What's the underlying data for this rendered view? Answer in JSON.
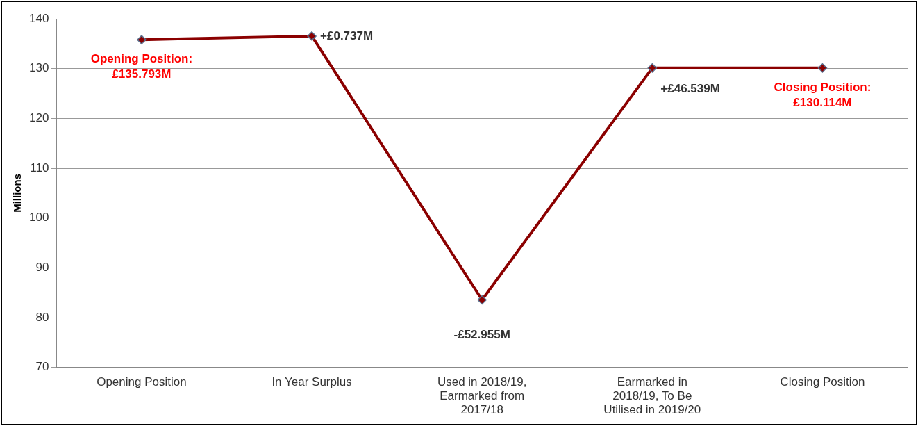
{
  "chart_data": {
    "type": "line",
    "ylabel": "Millions",
    "categories": [
      "Opening Position",
      "In Year Surplus",
      "Used in 2018/19, Earmarked from 2017/18",
      "Earmarked in 2018/19, To Be Utilised in 2019/20",
      "Closing Position"
    ],
    "series": [
      {
        "color": "#8b0000",
        "values": [
          135.793,
          136.53,
          83.575,
          130.114,
          130.114
        ]
      }
    ],
    "ylim": [
      70,
      140
    ],
    "yticks": [
      70,
      80,
      90,
      100,
      110,
      120,
      130,
      140
    ],
    "grid": "y",
    "legend": false,
    "marker": "diamond",
    "line_style": "solid",
    "annotations": [
      {
        "text": "Opening Position: £135.793M",
        "x": "Opening Position",
        "y": 135.793
      },
      {
        "text": "+£0.737M",
        "x": "In Year Surplus",
        "y": 136.53
      },
      {
        "text": "-£52.955M",
        "x": "Used in 2018/19, Earmarked from 2017/18",
        "y": 83.575
      },
      {
        "text": "+£46.539M",
        "x": "Earmarked in 2018/19, To Be Utilised in 2019/20",
        "y": 130.114
      },
      {
        "text": "Closing Position: £130.114M",
        "x": "Closing Position",
        "y": 130.114
      }
    ]
  }
}
